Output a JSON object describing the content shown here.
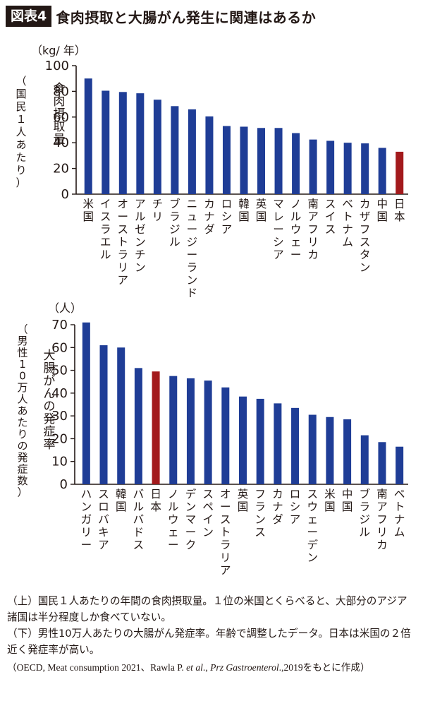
{
  "title": {
    "figure_label": "図表4",
    "text": "食肉摂取と大腸がん発生に関連はあるか"
  },
  "colors": {
    "bar": "#1f3d96",
    "highlight": "#a31a1c",
    "text": "#231815"
  },
  "chart_data": [
    {
      "type": "bar",
      "unit": "（kg/ 年）",
      "ylabel": "食肉摂取量",
      "ylabel_note": "（国民１人あたり）",
      "ylim": [
        0,
        100
      ],
      "yticks": [
        0,
        20,
        40,
        60,
        80,
        100
      ],
      "grid": false,
      "legend": "none",
      "highlight_category": "日本",
      "categories": [
        "米国",
        "イスラエル",
        "オーストラリア",
        "アルゼンチン",
        "チリ",
        "ブラジル",
        "ニュージーランド",
        "カナダ",
        "ロシア",
        "韓国",
        "英国",
        "マレーシア",
        "ノルウェー",
        "南アフリカ",
        "スイス",
        "ベトナム",
        "カザフスタン",
        "中国",
        "日本"
      ],
      "values": [
        90,
        80.5,
        79.5,
        78.5,
        73.5,
        68.5,
        66,
        60.5,
        53,
        52.5,
        51.5,
        51.5,
        47.5,
        42.5,
        41.5,
        40,
        39.5,
        36,
        33
      ]
    },
    {
      "type": "bar",
      "unit": "（人）",
      "ylabel": "大腸がんの発症率",
      "ylabel_note": "（男性10万人あたりの発症数）",
      "ylim": [
        0,
        70
      ],
      "yticks": [
        0,
        10,
        20,
        30,
        40,
        50,
        60,
        70
      ],
      "grid": false,
      "legend": "none",
      "highlight_category": "日本",
      "categories": [
        "ハンガリー",
        "スロバキア",
        "韓国",
        "バルバドス",
        "日本",
        "ノルウェー",
        "デンマーク",
        "スペイン",
        "オーストラリア",
        "英国",
        "フランス",
        "カナダ",
        "ロシア",
        "スウェーデン",
        "米国",
        "中国",
        "ブラジル",
        "南アフリカ",
        "ベトナム"
      ],
      "values": [
        71,
        61,
        60,
        51,
        49.5,
        47.5,
        46.5,
        45.5,
        42.5,
        38.5,
        37.5,
        35.5,
        33.5,
        30.5,
        29.5,
        28.5,
        21.5,
        18.5,
        16.5
      ]
    }
  ],
  "caption": {
    "line1": "（上）国民１人あたりの年間の食肉摂取量。１位の米国とくらべると、大部分のアジア諸国は半分程度しか食べていない。",
    "line2": "（下）男性10万人あたりの大腸がん発症率。年齢で調整したデータ。日本は米国の２倍近く発症率が高い。",
    "source_a": "（OECD, Meat consumption 2021、Rawla P. ",
    "source_b": "et al",
    "source_c": "., ",
    "source_d": "Prz Gastroenterol",
    "source_e": ".,2019をもとに作成）"
  }
}
